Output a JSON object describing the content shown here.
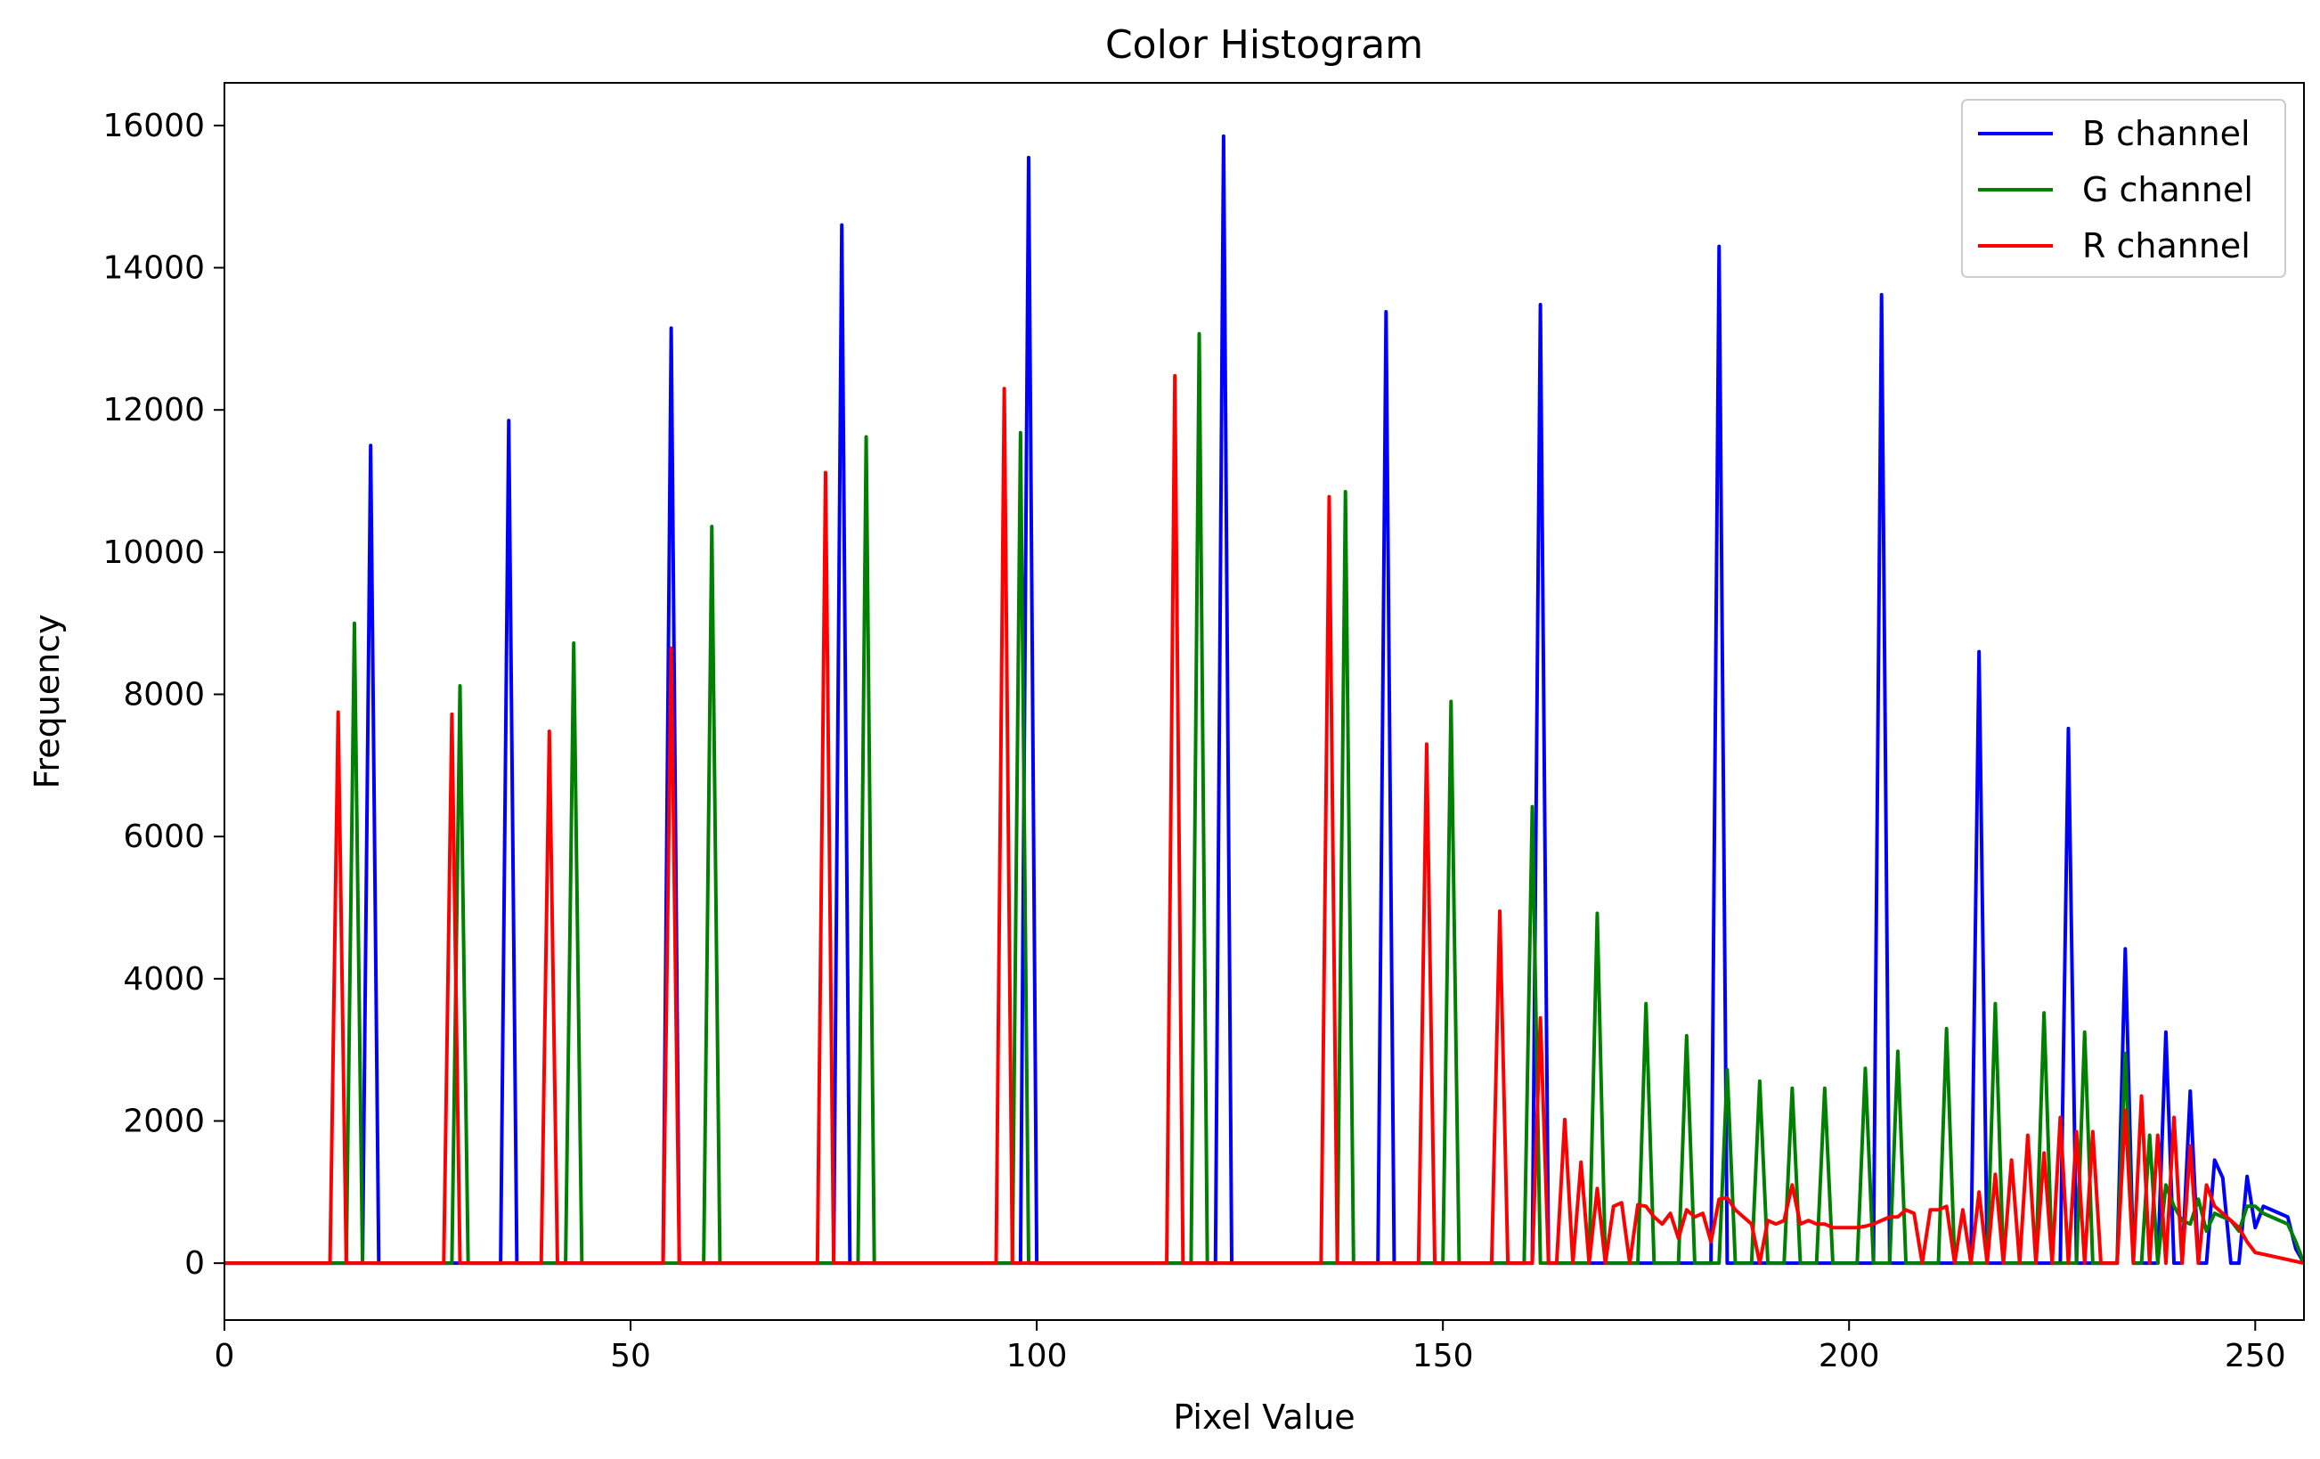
{
  "chart_data": {
    "type": "line",
    "title": "Color Histogram",
    "xlabel": "Pixel Value",
    "ylabel": "Frequency",
    "xlim": [
      0,
      256
    ],
    "ylim": [
      -800,
      16600
    ],
    "xticks": [
      0,
      50,
      100,
      150,
      200,
      250
    ],
    "yticks": [
      0,
      2000,
      4000,
      6000,
      8000,
      10000,
      12000,
      14000,
      16000
    ],
    "grid": false,
    "legend_position": "top-right",
    "series": [
      {
        "name": "B channel",
        "color": "#0000ff",
        "points": [
          [
            0,
            0
          ],
          [
            17,
            0
          ],
          [
            18,
            11500
          ],
          [
            19,
            0
          ],
          [
            34,
            0
          ],
          [
            35,
            11850
          ],
          [
            36,
            0
          ],
          [
            54,
            0
          ],
          [
            55,
            13150
          ],
          [
            56,
            0
          ],
          [
            75,
            0
          ],
          [
            76,
            14600
          ],
          [
            77,
            0
          ],
          [
            98,
            0
          ],
          [
            99,
            15550
          ],
          [
            100,
            0
          ],
          [
            122,
            0
          ],
          [
            123,
            15850
          ],
          [
            124,
            0
          ],
          [
            142,
            0
          ],
          [
            143,
            13380
          ],
          [
            144,
            0
          ],
          [
            161,
            0
          ],
          [
            162,
            13480
          ],
          [
            163,
            0
          ],
          [
            183,
            0
          ],
          [
            184,
            14300
          ],
          [
            185,
            0
          ],
          [
            203,
            0
          ],
          [
            204,
            13620
          ],
          [
            205,
            0
          ],
          [
            215,
            0
          ],
          [
            216,
            8600
          ],
          [
            217,
            0
          ],
          [
            226,
            0
          ],
          [
            227,
            7520
          ],
          [
            228,
            0
          ],
          [
            233,
            0
          ],
          [
            234,
            4420
          ],
          [
            235,
            0
          ],
          [
            238,
            0
          ],
          [
            239,
            3250
          ],
          [
            240,
            0
          ],
          [
            241,
            0
          ],
          [
            242,
            2420
          ],
          [
            243,
            0
          ],
          [
            244,
            0
          ],
          [
            245,
            1450
          ],
          [
            246,
            1200
          ],
          [
            247,
            0
          ],
          [
            248,
            0
          ],
          [
            249,
            1220
          ],
          [
            250,
            500
          ],
          [
            251,
            800
          ],
          [
            252,
            750
          ],
          [
            253,
            700
          ],
          [
            254,
            650
          ],
          [
            255,
            200
          ],
          [
            256,
            0
          ]
        ]
      },
      {
        "name": "G channel",
        "color": "#008000",
        "points": [
          [
            0,
            0
          ],
          [
            15,
            0
          ],
          [
            16,
            9000
          ],
          [
            17,
            0
          ],
          [
            28,
            0
          ],
          [
            29,
            8120
          ],
          [
            30,
            0
          ],
          [
            42,
            0
          ],
          [
            43,
            8720
          ],
          [
            44,
            0
          ],
          [
            59,
            0
          ],
          [
            60,
            10360
          ],
          [
            61,
            0
          ],
          [
            78,
            0
          ],
          [
            79,
            11620
          ],
          [
            80,
            0
          ],
          [
            97,
            0
          ],
          [
            98,
            11680
          ],
          [
            99,
            0
          ],
          [
            119,
            0
          ],
          [
            120,
            13070
          ],
          [
            121,
            0
          ],
          [
            137,
            0
          ],
          [
            138,
            10850
          ],
          [
            139,
            0
          ],
          [
            150,
            0
          ],
          [
            151,
            7900
          ],
          [
            152,
            0
          ],
          [
            160,
            0
          ],
          [
            161,
            6420
          ],
          [
            162,
            0
          ],
          [
            168,
            0
          ],
          [
            169,
            4920
          ],
          [
            170,
            0
          ],
          [
            174,
            0
          ],
          [
            175,
            3650
          ],
          [
            176,
            0
          ],
          [
            179,
            0
          ],
          [
            180,
            3200
          ],
          [
            181,
            0
          ],
          [
            184,
            0
          ],
          [
            185,
            2720
          ],
          [
            186,
            0
          ],
          [
            188,
            0
          ],
          [
            189,
            2560
          ],
          [
            190,
            0
          ],
          [
            192,
            0
          ],
          [
            193,
            2460
          ],
          [
            194,
            0
          ],
          [
            196,
            0
          ],
          [
            197,
            2460
          ],
          [
            198,
            0
          ],
          [
            201,
            0
          ],
          [
            202,
            2740
          ],
          [
            203,
            0
          ],
          [
            205,
            0
          ],
          [
            206,
            2980
          ],
          [
            207,
            0
          ],
          [
            211,
            0
          ],
          [
            212,
            3300
          ],
          [
            213,
            0
          ],
          [
            217,
            0
          ],
          [
            218,
            3650
          ],
          [
            219,
            0
          ],
          [
            223,
            0
          ],
          [
            224,
            3520
          ],
          [
            225,
            0
          ],
          [
            228,
            0
          ],
          [
            229,
            3250
          ],
          [
            230,
            0
          ],
          [
            233,
            0
          ],
          [
            234,
            2950
          ],
          [
            235,
            0
          ],
          [
            236,
            0
          ],
          [
            237,
            1800
          ],
          [
            238,
            0
          ],
          [
            239,
            1100
          ],
          [
            240,
            800
          ],
          [
            241,
            600
          ],
          [
            242,
            550
          ],
          [
            243,
            900
          ],
          [
            244,
            450
          ],
          [
            245,
            700
          ],
          [
            246,
            650
          ],
          [
            247,
            600
          ],
          [
            248,
            450
          ],
          [
            249,
            800
          ],
          [
            250,
            800
          ],
          [
            251,
            700
          ],
          [
            252,
            650
          ],
          [
            253,
            600
          ],
          [
            254,
            550
          ],
          [
            255,
            300
          ],
          [
            256,
            0
          ]
        ]
      },
      {
        "name": "R channel",
        "color": "#ff0000",
        "points": [
          [
            0,
            0
          ],
          [
            13,
            0
          ],
          [
            14,
            7750
          ],
          [
            15,
            0
          ],
          [
            27,
            0
          ],
          [
            28,
            7720
          ],
          [
            29,
            0
          ],
          [
            39,
            0
          ],
          [
            40,
            7480
          ],
          [
            41,
            0
          ],
          [
            54,
            0
          ],
          [
            55,
            8650
          ],
          [
            56,
            0
          ],
          [
            73,
            0
          ],
          [
            74,
            11120
          ],
          [
            75,
            0
          ],
          [
            95,
            0
          ],
          [
            96,
            12300
          ],
          [
            97,
            0
          ],
          [
            116,
            0
          ],
          [
            117,
            12480
          ],
          [
            118,
            0
          ],
          [
            135,
            0
          ],
          [
            136,
            10780
          ],
          [
            137,
            0
          ],
          [
            147,
            0
          ],
          [
            148,
            7300
          ],
          [
            149,
            0
          ],
          [
            156,
            0
          ],
          [
            157,
            4950
          ],
          [
            158,
            0
          ],
          [
            161,
            0
          ],
          [
            162,
            3450
          ],
          [
            163,
            0
          ],
          [
            164,
            0
          ],
          [
            165,
            2020
          ],
          [
            166,
            0
          ],
          [
            167,
            1420
          ],
          [
            168,
            0
          ],
          [
            169,
            1050
          ],
          [
            170,
            0
          ],
          [
            171,
            800
          ],
          [
            172,
            850
          ],
          [
            173,
            0
          ],
          [
            174,
            820
          ],
          [
            175,
            800
          ],
          [
            176,
            650
          ],
          [
            177,
            550
          ],
          [
            178,
            700
          ],
          [
            179,
            350
          ],
          [
            180,
            750
          ],
          [
            181,
            650
          ],
          [
            182,
            700
          ],
          [
            183,
            300
          ],
          [
            184,
            900
          ],
          [
            185,
            920
          ],
          [
            186,
            750
          ],
          [
            187,
            650
          ],
          [
            188,
            550
          ],
          [
            189,
            0
          ],
          [
            190,
            600
          ],
          [
            191,
            550
          ],
          [
            192,
            600
          ],
          [
            193,
            1100
          ],
          [
            194,
            550
          ],
          [
            195,
            600
          ],
          [
            196,
            550
          ],
          [
            197,
            550
          ],
          [
            198,
            500
          ],
          [
            199,
            500
          ],
          [
            200,
            500
          ],
          [
            201,
            500
          ],
          [
            202,
            520
          ],
          [
            203,
            550
          ],
          [
            204,
            600
          ],
          [
            205,
            650
          ],
          [
            206,
            650
          ],
          [
            207,
            750
          ],
          [
            208,
            700
          ],
          [
            209,
            0
          ],
          [
            210,
            750
          ],
          [
            211,
            750
          ],
          [
            212,
            800
          ],
          [
            213,
            0
          ],
          [
            214,
            750
          ],
          [
            215,
            0
          ],
          [
            216,
            1000
          ],
          [
            217,
            0
          ],
          [
            218,
            1250
          ],
          [
            219,
            0
          ],
          [
            220,
            1450
          ],
          [
            221,
            0
          ],
          [
            222,
            1800
          ],
          [
            223,
            0
          ],
          [
            224,
            1550
          ],
          [
            225,
            0
          ],
          [
            226,
            2050
          ],
          [
            227,
            0
          ],
          [
            228,
            1850
          ],
          [
            229,
            0
          ],
          [
            230,
            1850
          ],
          [
            231,
            0
          ],
          [
            232,
            0
          ],
          [
            233,
            0
          ],
          [
            234,
            2150
          ],
          [
            235,
            0
          ],
          [
            236,
            2350
          ],
          [
            237,
            0
          ],
          [
            238,
            1800
          ],
          [
            239,
            0
          ],
          [
            240,
            2050
          ],
          [
            241,
            0
          ],
          [
            242,
            1650
          ],
          [
            243,
            0
          ],
          [
            244,
            1100
          ],
          [
            245,
            800
          ],
          [
            246,
            700
          ],
          [
            247,
            600
          ],
          [
            248,
            500
          ],
          [
            249,
            300
          ],
          [
            250,
            150
          ],
          [
            256,
            0
          ]
        ]
      }
    ]
  }
}
